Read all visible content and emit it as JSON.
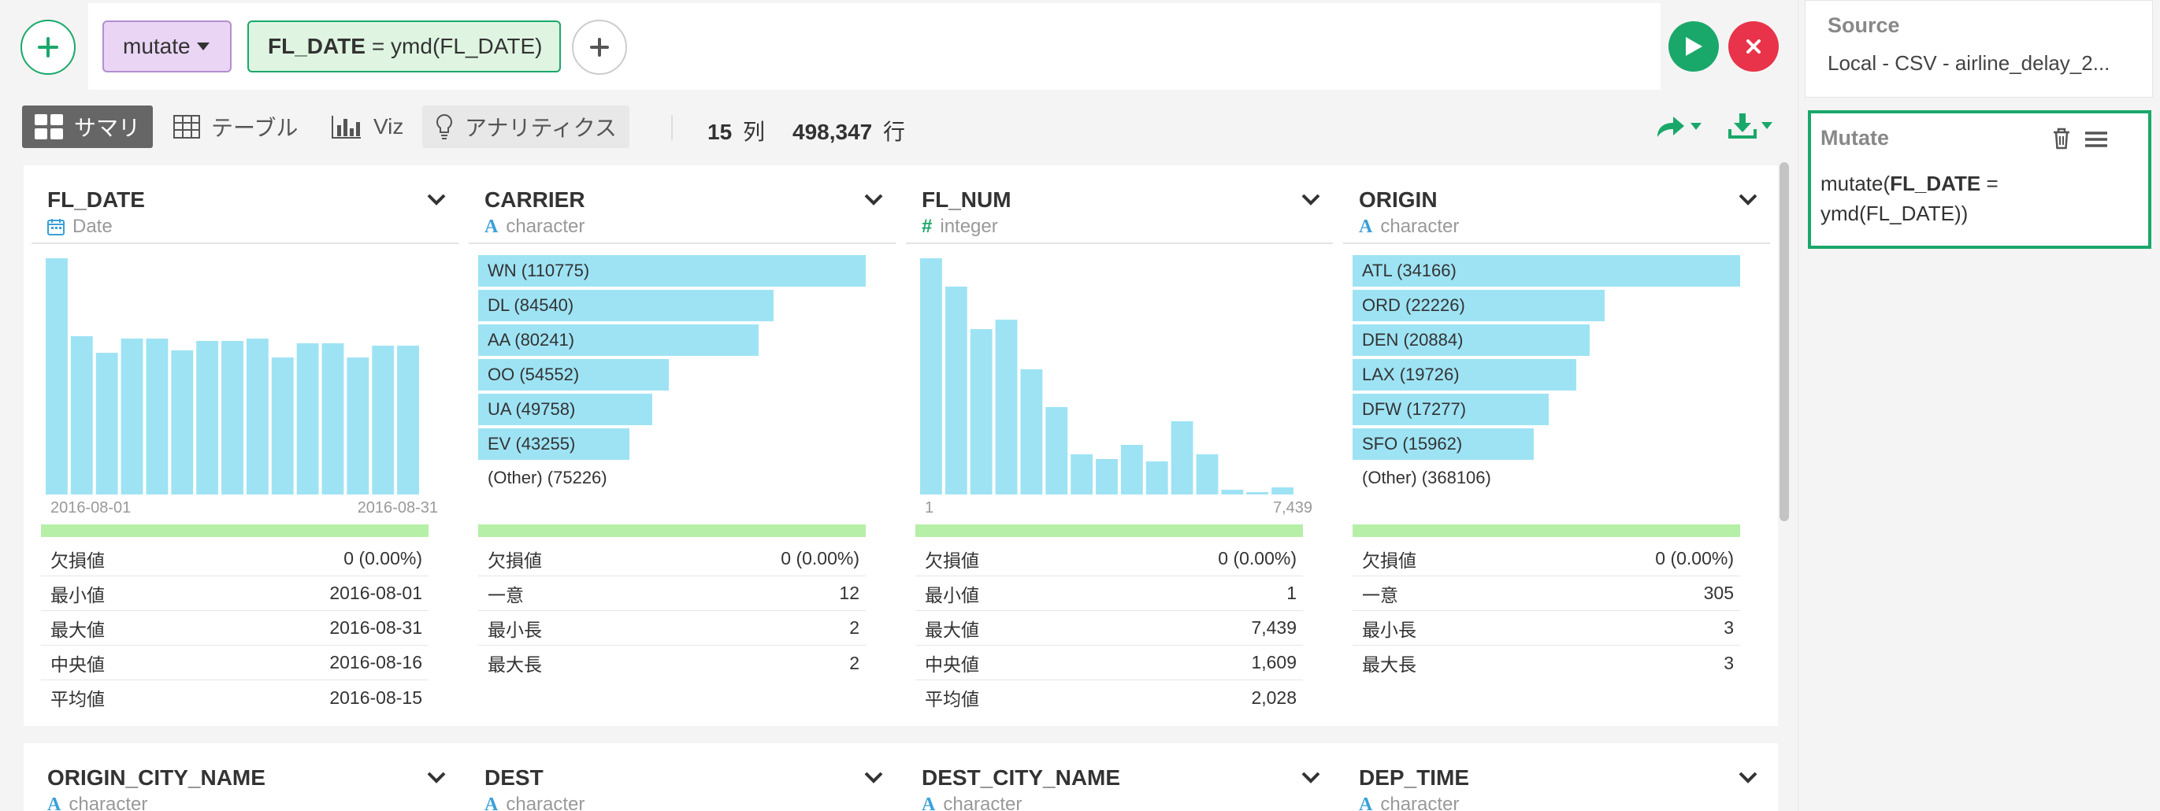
{
  "toolbar": {
    "command_label": "mutate",
    "expr_col": "FL_DATE",
    "expr_rest": "= ymd(FL_DATE)",
    "colors": {
      "green": "#1aa86a",
      "red": "#e8334a",
      "command_bg": "#ead5f5",
      "expr_bg": "#dff5e2"
    }
  },
  "view": {
    "tabs": [
      {
        "label": "サマリ",
        "icon": "grid-icon",
        "active": true
      },
      {
        "label": "テーブル",
        "icon": "table-icon"
      },
      {
        "label": "Viz",
        "icon": "chart-icon"
      },
      {
        "label": "アナリティクス",
        "icon": "lightbulb-icon"
      }
    ],
    "cols_count": "15",
    "cols_unit": "列",
    "rows_count": "498,347",
    "rows_unit": "行"
  },
  "cards": [
    {
      "name": "FL_DATE",
      "type": "Date",
      "type_icon": "calendar-icon",
      "chart_data": {
        "type": "bar",
        "x_range": [
          "2016-08-01",
          "2016-08-31"
        ],
        "values": [
          100,
          67,
          60,
          66,
          66,
          61,
          65,
          65,
          66,
          58,
          64,
          64,
          58,
          63,
          63
        ]
      },
      "axis_min": "2016-08-01",
      "axis_max": "2016-08-31",
      "stats": [
        {
          "label": "欠損値",
          "value": "0 (0.00%)"
        },
        {
          "label": "最小値",
          "value": "2016-08-01"
        },
        {
          "label": "最大値",
          "value": "2016-08-31"
        },
        {
          "label": "中央値",
          "value": "2016-08-16"
        },
        {
          "label": "平均値",
          "value": "2016-08-15"
        }
      ]
    },
    {
      "name": "CARRIER",
      "type": "character",
      "type_icon": "text-type-icon",
      "chart_data": {
        "type": "bar",
        "categories": [
          "WN",
          "DL",
          "AA",
          "OO",
          "UA",
          "EV"
        ],
        "values": [
          110775,
          84540,
          80241,
          54552,
          49758,
          43255
        ]
      },
      "bar_labels": [
        "WN (110775)",
        "DL (84540)",
        "AA (80241)",
        "OO (54552)",
        "UA (49758)",
        "EV (43255)"
      ],
      "other": "(Other) (75226)",
      "stats": [
        {
          "label": "欠損値",
          "value": "0 (0.00%)"
        },
        {
          "label": "一意",
          "value": "12"
        },
        {
          "label": "最小長",
          "value": "2"
        },
        {
          "label": "最大長",
          "value": "2"
        }
      ]
    },
    {
      "name": "FL_NUM",
      "type": "integer",
      "type_icon": "hash-icon",
      "chart_data": {
        "type": "bar",
        "x_range": [
          1,
          7439
        ],
        "values": [
          100,
          88,
          70,
          74,
          53,
          37,
          17,
          15,
          21,
          14,
          31,
          17,
          2,
          1,
          3
        ]
      },
      "axis_min": "1",
      "axis_max": "7,439",
      "stats": [
        {
          "label": "欠損値",
          "value": "0 (0.00%)"
        },
        {
          "label": "最小値",
          "value": "1"
        },
        {
          "label": "最大値",
          "value": "7,439"
        },
        {
          "label": "中央値",
          "value": "1,609"
        },
        {
          "label": "平均値",
          "value": "2,028"
        }
      ]
    },
    {
      "name": "ORIGIN",
      "type": "character",
      "type_icon": "text-type-icon",
      "chart_data": {
        "type": "bar",
        "categories": [
          "ATL",
          "ORD",
          "DEN",
          "LAX",
          "DFW",
          "SFO"
        ],
        "values": [
          34166,
          22226,
          20884,
          19726,
          17277,
          15962
        ]
      },
      "bar_labels": [
        "ATL (34166)",
        "ORD (22226)",
        "DEN (20884)",
        "LAX (19726)",
        "DFW (17277)",
        "SFO (15962)"
      ],
      "other": "(Other) (368106)",
      "stats": [
        {
          "label": "欠損値",
          "value": "0 (0.00%)"
        },
        {
          "label": "一意",
          "value": "305"
        },
        {
          "label": "最小長",
          "value": "3"
        },
        {
          "label": "最大長",
          "value": "3"
        }
      ]
    }
  ],
  "cards_row2": [
    {
      "name": "ORIGIN_CITY_NAME",
      "type": "character"
    },
    {
      "name": "DEST",
      "type": "character"
    },
    {
      "name": "DEST_CITY_NAME",
      "type": "character"
    },
    {
      "name": "DEP_TIME",
      "type": "character"
    }
  ],
  "right_panel": {
    "source_title": "Source",
    "source_text": "Local - CSV - airline_delay_2...",
    "step_title": "Mutate",
    "step_fn": "mutate(",
    "step_col": "FL_DATE",
    "step_mid": " =",
    "step_rest": "ymd(FL_DATE))"
  }
}
